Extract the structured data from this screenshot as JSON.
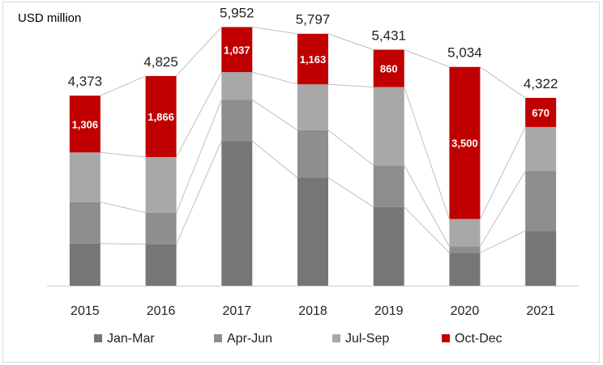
{
  "chart_data": {
    "type": "bar",
    "stacked": true,
    "ylabel": "USD million",
    "categories": [
      "2015",
      "2016",
      "2017",
      "2018",
      "2019",
      "2020",
      "2021"
    ],
    "series": [
      {
        "name": "Jan-Mar",
        "color": "#767676",
        "values": [
          970,
          955,
          3330,
          2485,
          1810,
          760,
          1260
        ]
      },
      {
        "name": "Apr-Jun",
        "color": "#8e8e8e",
        "values": [
          955,
          725,
          945,
          1095,
          960,
          144,
          1375
        ]
      },
      {
        "name": "Jul-Sep",
        "color": "#a8a8a8",
        "values": [
          1142,
          1279,
          640,
          1054,
          1801,
          630,
          1017
        ]
      },
      {
        "name": "Oct-Dec",
        "color": "#c00000",
        "values": [
          1306,
          1866,
          1037,
          1163,
          860,
          3500,
          670
        ]
      }
    ],
    "totals": [
      "4,373",
      "4,825",
      "5,952",
      "5,797",
      "5,431",
      "5,034",
      "4,322"
    ],
    "data_labels": [
      "1,306",
      "1,866",
      "1,037",
      "1,163",
      "860",
      "3,500",
      "670"
    ],
    "ylim": [
      0,
      6500
    ],
    "grid": false,
    "legend_position": "bottom"
  }
}
